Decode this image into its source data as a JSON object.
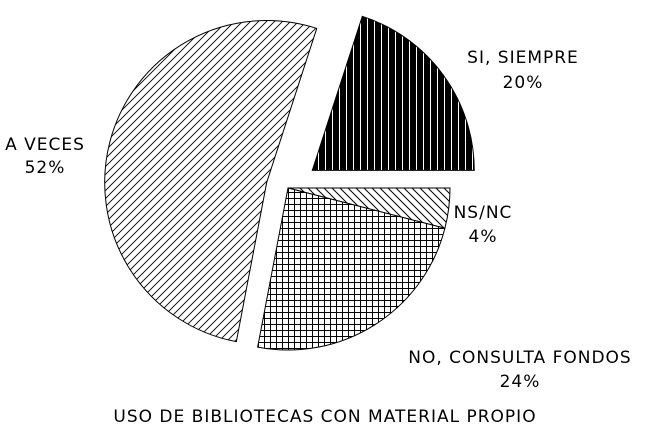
{
  "chart_data": {
    "type": "pie",
    "title": "USO DE BIBLIOTECAS CON MATERIAL PROPIO",
    "categories": [
      "SI, SIEMPRE",
      "NS/NC",
      "NO, CONSULTA FONDOS",
      "A VECES"
    ],
    "values": [
      20,
      4,
      24,
      52
    ],
    "value_labels": [
      "20%",
      "4%",
      "24%",
      "52%"
    ]
  }
}
